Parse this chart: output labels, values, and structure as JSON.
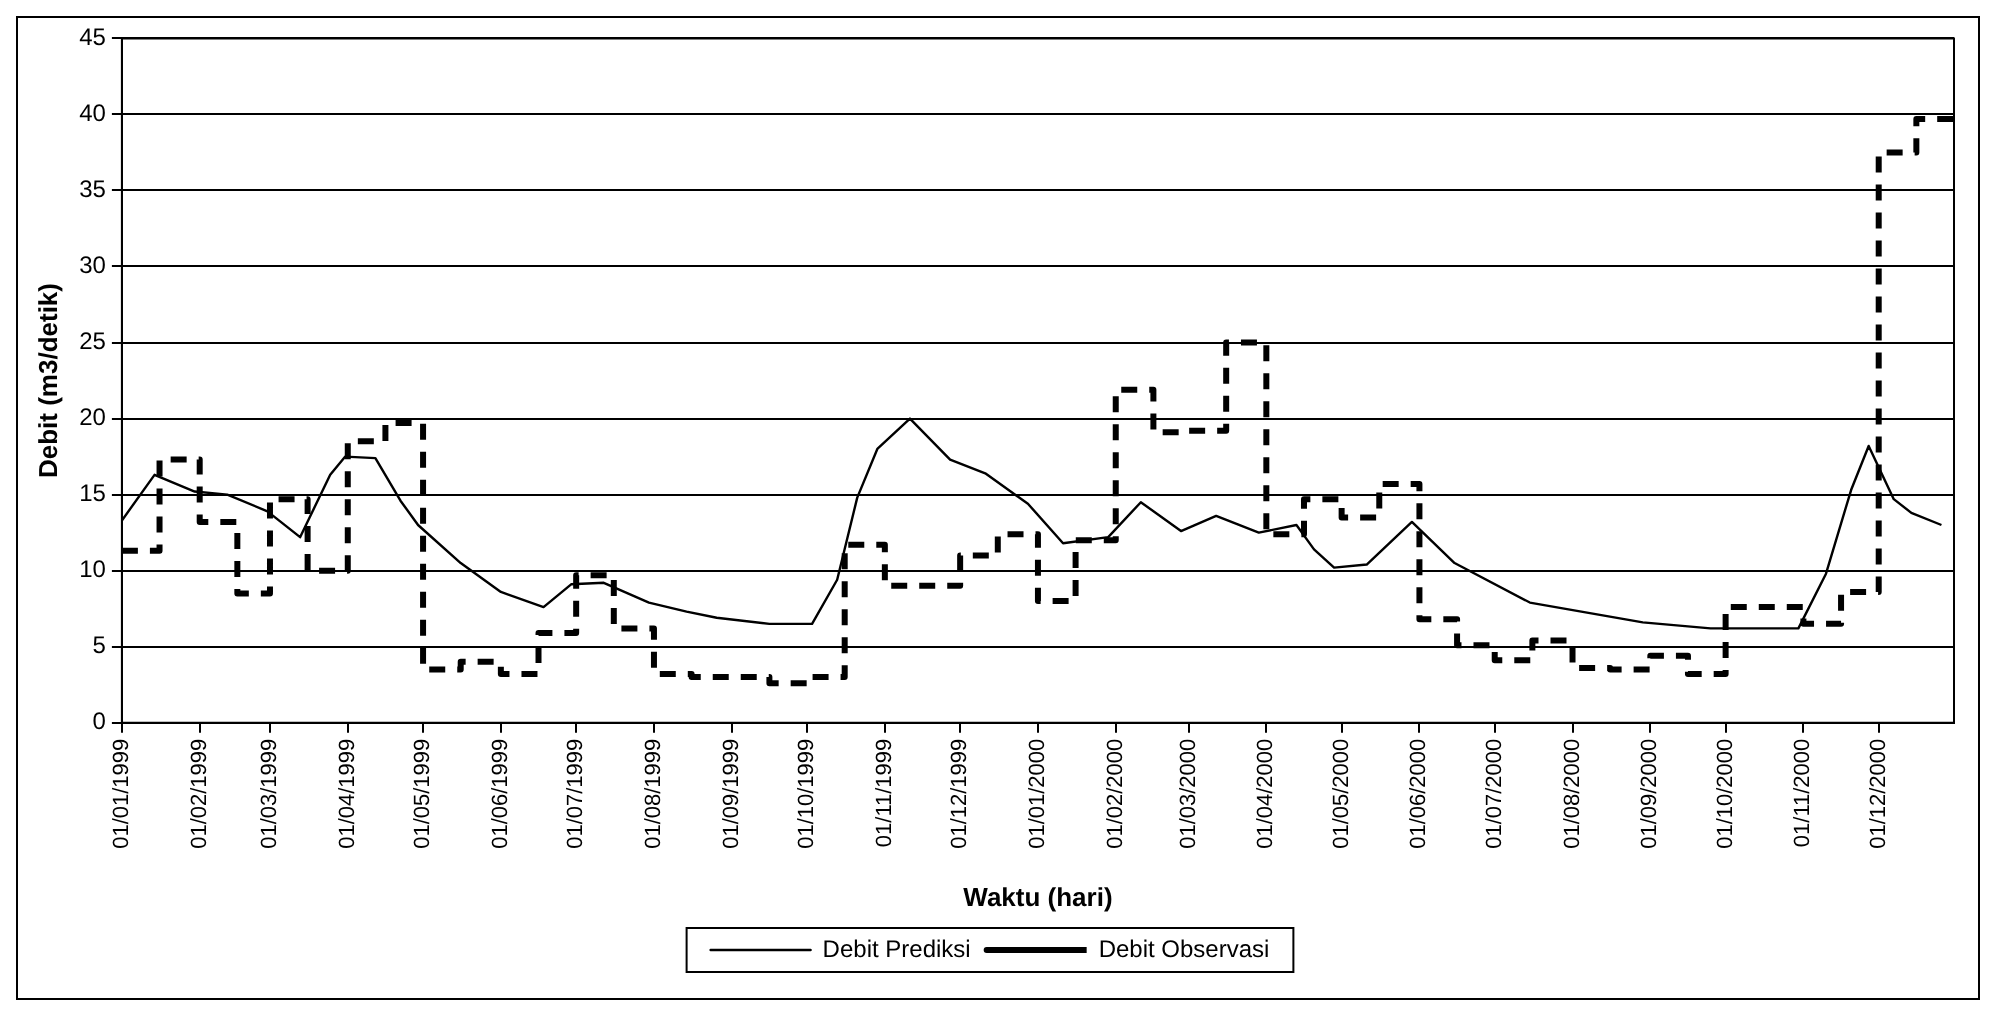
{
  "chart_data": {
    "type": "line",
    "xlabel": "Waktu (hari)",
    "ylabel": "Debit (m3/detik)",
    "xlim": [
      "1999-01-01",
      "2000-12-31"
    ],
    "xticks": [
      {
        "value": "1999-01-01",
        "label": "01/01/1999"
      },
      {
        "value": "1999-02-01",
        "label": "01/02/1999"
      },
      {
        "value": "1999-03-01",
        "label": "01/03/1999"
      },
      {
        "value": "1999-04-01",
        "label": "01/04/1999"
      },
      {
        "value": "1999-05-01",
        "label": "01/05/1999"
      },
      {
        "value": "1999-06-01",
        "label": "01/06/1999"
      },
      {
        "value": "1999-07-01",
        "label": "01/07/1999"
      },
      {
        "value": "1999-08-01",
        "label": "01/08/1999"
      },
      {
        "value": "1999-09-01",
        "label": "01/09/1999"
      },
      {
        "value": "1999-10-01",
        "label": "01/10/1999"
      },
      {
        "value": "1999-11-01",
        "label": "01/11/1999"
      },
      {
        "value": "1999-12-01",
        "label": "01/12/1999"
      },
      {
        "value": "2000-01-01",
        "label": "01/01/2000"
      },
      {
        "value": "2000-02-01",
        "label": "01/02/2000"
      },
      {
        "value": "2000-03-01",
        "label": "01/03/2000"
      },
      {
        "value": "2000-04-01",
        "label": "01/04/2000"
      },
      {
        "value": "2000-05-01",
        "label": "01/05/2000"
      },
      {
        "value": "2000-06-01",
        "label": "01/06/2000"
      },
      {
        "value": "2000-07-01",
        "label": "01/07/2000"
      },
      {
        "value": "2000-08-01",
        "label": "01/08/2000"
      },
      {
        "value": "2000-09-01",
        "label": "01/09/2000"
      },
      {
        "value": "2000-10-01",
        "label": "01/10/2000"
      },
      {
        "value": "2000-11-01",
        "label": "01/11/2000"
      },
      {
        "value": "2000-12-01",
        "label": "01/12/2000"
      }
    ],
    "ylim": [
      0,
      45
    ],
    "yticks": [
      0,
      5,
      10,
      15,
      20,
      25,
      30,
      35,
      40,
      45
    ],
    "grid": "y",
    "legend": "bottom",
    "marker": "none",
    "series": [
      {
        "name": "Debit Prediksi",
        "type": "line",
        "line_style": "solid",
        "color": "#000000",
        "x": [
          "1999-01-01",
          "1999-01-14",
          "1999-01-30",
          "1999-02-12",
          "1999-02-28",
          "1999-03-13",
          "1999-03-25",
          "1999-03-31",
          "1999-04-12",
          "1999-04-22",
          "1999-04-29",
          "1999-05-16",
          "1999-06-01",
          "1999-06-18",
          "1999-06-29",
          "1999-07-12",
          "1999-07-30",
          "1999-08-14",
          "1999-08-26",
          "1999-09-16",
          "1999-10-03",
          "1999-10-13",
          "1999-10-21",
          "1999-10-29",
          "1999-11-11",
          "1999-11-27",
          "1999-12-11",
          "1999-12-28",
          "2000-01-11",
          "2000-01-29",
          "2000-02-11",
          "2000-02-27",
          "2000-03-12",
          "2000-03-29",
          "2000-04-13",
          "2000-04-20",
          "2000-04-28",
          "2000-05-11",
          "2000-05-29",
          "2000-06-15",
          "2000-07-15",
          "2000-08-29",
          "2000-09-25",
          "2000-10-30",
          "2000-11-10",
          "2000-11-20",
          "2000-11-27",
          "2000-12-07",
          "2000-12-14",
          "2000-12-26"
        ],
        "values": [
          13.3,
          16.3,
          15.2,
          15.0,
          13.9,
          12.2,
          16.3,
          17.5,
          17.4,
          14.6,
          13.0,
          10.5,
          8.6,
          7.6,
          9.1,
          9.2,
          7.9,
          7.3,
          6.9,
          6.5,
          6.5,
          9.4,
          14.8,
          18.0,
          20.0,
          17.3,
          16.4,
          14.4,
          11.8,
          12.2,
          14.5,
          12.6,
          13.6,
          12.5,
          13.0,
          11.4,
          10.2,
          10.4,
          13.2,
          10.5,
          7.9,
          6.6,
          6.2,
          6.2,
          9.8,
          15.3,
          18.2,
          14.7,
          13.8,
          13.0
        ]
      },
      {
        "name": "Debit Observasi",
        "type": "step",
        "line_style": "dashed",
        "color": "#000000",
        "x": [
          "1999-01-01",
          "1999-01-16",
          "1999-02-01",
          "1999-02-16",
          "1999-03-01",
          "1999-03-16",
          "1999-04-01",
          "1999-04-16",
          "1999-05-01",
          "1999-05-16",
          "1999-06-01",
          "1999-06-16",
          "1999-07-01",
          "1999-07-16",
          "1999-08-01",
          "1999-08-16",
          "1999-09-01",
          "1999-09-16",
          "1999-10-01",
          "1999-10-16",
          "1999-11-01",
          "1999-11-16",
          "1999-12-01",
          "1999-12-16",
          "2000-01-01",
          "2000-01-16",
          "2000-02-01",
          "2000-02-16",
          "2000-03-01",
          "2000-03-16",
          "2000-04-01",
          "2000-04-16",
          "2000-05-01",
          "2000-05-16",
          "2000-06-01",
          "2000-06-16",
          "2000-07-01",
          "2000-07-16",
          "2000-08-01",
          "2000-08-16",
          "2000-09-01",
          "2000-09-16",
          "2000-10-01",
          "2000-10-16",
          "2000-11-01",
          "2000-11-16",
          "2000-12-01",
          "2000-12-16",
          "2000-12-31"
        ],
        "values": [
          11.3,
          17.3,
          13.2,
          8.5,
          14.7,
          10.0,
          18.5,
          19.7,
          3.5,
          4.0,
          3.2,
          5.9,
          9.7,
          6.2,
          3.2,
          3.0,
          3.0,
          2.6,
          3.0,
          11.7,
          9.0,
          9.0,
          11.0,
          12.4,
          8.0,
          12.0,
          21.9,
          19.1,
          19.2,
          25.0,
          12.4,
          14.7,
          13.5,
          15.7,
          6.8,
          5.1,
          4.1,
          5.4,
          3.6,
          3.5,
          4.4,
          3.2,
          7.6,
          7.6,
          6.5,
          8.6,
          37.5,
          39.7,
          39.7
        ]
      }
    ]
  }
}
